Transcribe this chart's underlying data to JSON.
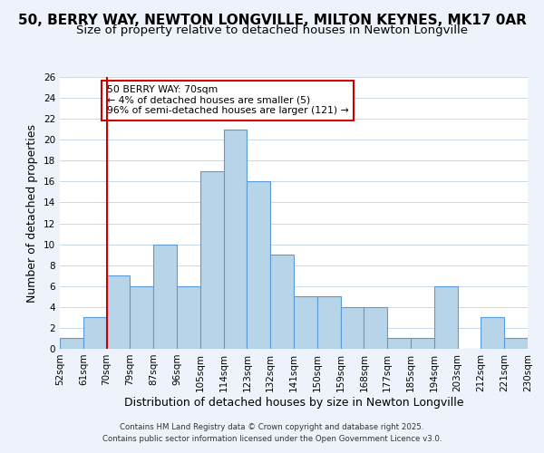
{
  "title": "50, BERRY WAY, NEWTON LONGVILLE, MILTON KEYNES, MK17 0AR",
  "subtitle": "Size of property relative to detached houses in Newton Longville",
  "xlabel": "Distribution of detached houses by size in Newton Longville",
  "ylabel": "Number of detached properties",
  "footnote1": "Contains HM Land Registry data © Crown copyright and database right 2025.",
  "footnote2": "Contains public sector information licensed under the Open Government Licence v3.0.",
  "bin_labels": [
    "52sqm",
    "61sqm",
    "70sqm",
    "79sqm",
    "87sqm",
    "96sqm",
    "105sqm",
    "114sqm",
    "123sqm",
    "132sqm",
    "141sqm",
    "150sqm",
    "159sqm",
    "168sqm",
    "177sqm",
    "185sqm",
    "194sqm",
    "203sqm",
    "212sqm",
    "221sqm",
    "230sqm"
  ],
  "bar_values": [
    1,
    3,
    7,
    6,
    10,
    6,
    17,
    21,
    16,
    9,
    5,
    5,
    4,
    4,
    1,
    1,
    6,
    0,
    3,
    1
  ],
  "bar_color": "#b8d4e8",
  "bar_edge_color": "#5b9bd5",
  "ylim": [
    0,
    26
  ],
  "yticks": [
    0,
    2,
    4,
    6,
    8,
    10,
    12,
    14,
    16,
    18,
    20,
    22,
    24,
    26
  ],
  "marker_x_label": "70sqm",
  "marker_color": "#cc0000",
  "annotation_title": "50 BERRY WAY: 70sqm",
  "annotation_line1": "← 4% of detached houses are smaller (5)",
  "annotation_line2": "96% of semi-detached houses are larger (121) →",
  "background_color": "#eef2fa",
  "plot_background": "#ffffff",
  "title_fontsize": 11,
  "subtitle_fontsize": 9.5,
  "axis_label_fontsize": 9,
  "tick_fontsize": 7.5
}
